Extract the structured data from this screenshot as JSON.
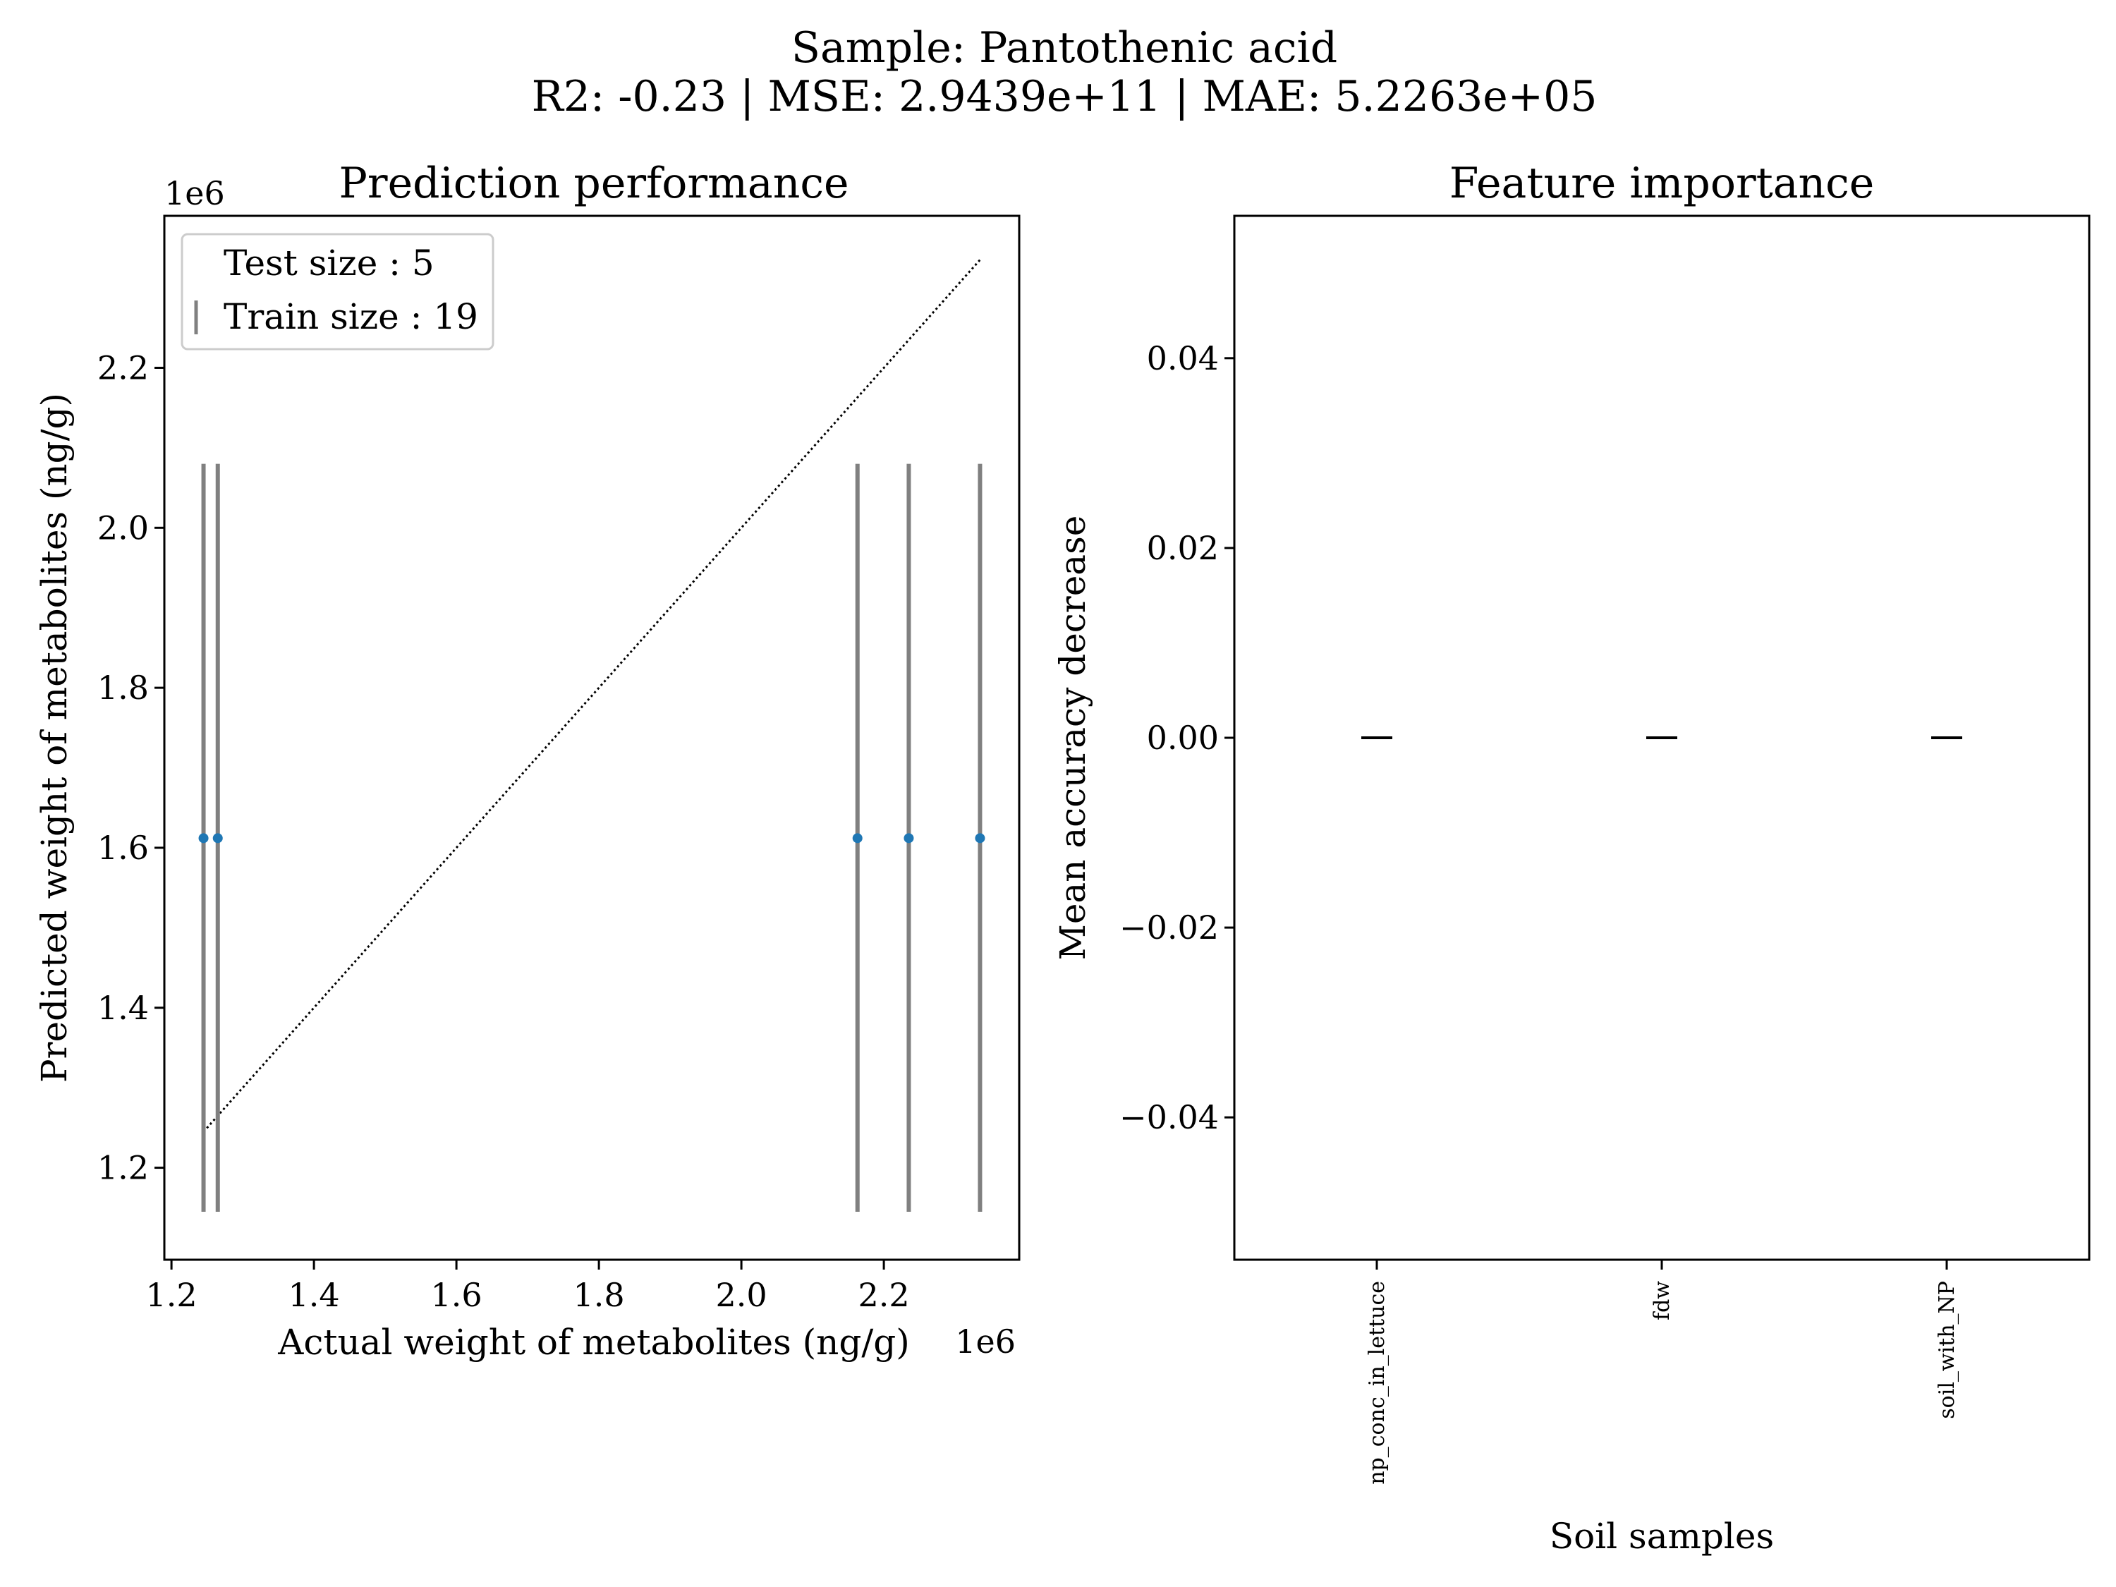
{
  "figure": {
    "suptitle_line1": "Sample: Pantothenic acid",
    "suptitle_line2": "R2: -0.23 | MSE: 2.9439e+11 | MAE: 5.2263e+05"
  },
  "chart_data": [
    {
      "type": "scatter",
      "title": "Prediction performance",
      "xlabel": "Actual weight of metabolites (ng/g)",
      "ylabel": "Predicted weight of metabolites (ng/g)",
      "x_offset_label": "1e6",
      "y_offset_label": "1e6",
      "xlim": [
        1.19,
        2.39
      ],
      "ylim": [
        1.085,
        2.39
      ],
      "xticks": [
        1.2,
        1.4,
        1.6,
        1.8,
        2.0,
        2.2
      ],
      "yticks": [
        1.2,
        1.4,
        1.6,
        1.8,
        2.0,
        2.2
      ],
      "tick_labels_x": [
        "1.2",
        "1.4",
        "1.6",
        "1.8",
        "2.0",
        "2.2"
      ],
      "tick_labels_y": [
        "1.2",
        "1.4",
        "1.6",
        "1.8",
        "2.0",
        "2.2"
      ],
      "points": {
        "x": [
          1.245,
          1.265,
          2.163,
          2.235,
          2.335
        ],
        "y": [
          1.612,
          1.612,
          1.612,
          1.612,
          1.612
        ],
        "color": "#1f77b4"
      },
      "error_bars": {
        "lower": [
          1.145,
          1.145,
          1.145,
          1.145,
          1.145
        ],
        "upper": [
          2.08,
          2.08,
          2.08,
          2.08,
          2.08
        ],
        "color": "#808080"
      },
      "identity_line": {
        "from": [
          1.245,
          1.245
        ],
        "to": [
          2.335,
          2.335
        ],
        "style": "dotted",
        "color": "#000000"
      },
      "legend": {
        "position": "top-left",
        "entries": [
          {
            "label": "Test size : 5",
            "marker": "none"
          },
          {
            "label": "Train size : 19",
            "marker": "vertical-line",
            "color": "#808080"
          }
        ]
      },
      "grid": false
    },
    {
      "type": "bar",
      "title": "Feature importance",
      "xlabel": "Soil samples",
      "ylabel": "Mean accuracy decrease",
      "categories": [
        "np_conc_in_lettuce",
        "fdw",
        "soil_with_NP"
      ],
      "values": [
        0.0,
        0.0,
        0.0
      ],
      "ylim": [
        -0.055,
        0.055
      ],
      "yticks": [
        -0.04,
        -0.02,
        0.0,
        0.02,
        0.04
      ],
      "tick_labels_y": [
        "−0.04",
        "−0.02",
        "0.00",
        "0.02",
        "0.04"
      ],
      "xtick_rotation": "vertical",
      "grid": false
    }
  ]
}
